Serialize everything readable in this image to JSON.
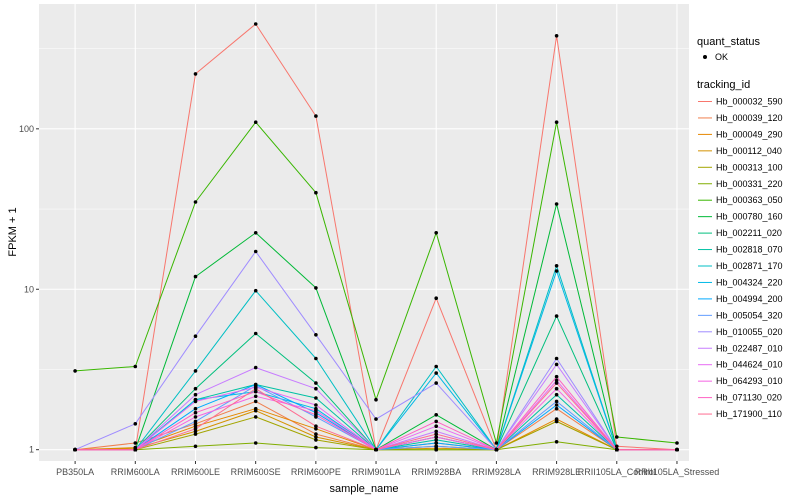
{
  "chart_data": {
    "type": "line",
    "xlabel": "sample_name",
    "ylabel": "FPKM + 1",
    "yscale": "log10",
    "ylim": [
      0.85,
      600
    ],
    "ytick_values": [
      1,
      10,
      100
    ],
    "ytick_labels": [
      "1",
      "10",
      "100"
    ],
    "grid": true,
    "background": "#ebebeb",
    "categories": [
      "PB350LA",
      "RRIM600LA",
      "RRIM600LE",
      "RRIM600SE",
      "RRIM600PE",
      "RRIM901LA",
      "RRIM928BA",
      "RRIM928LA",
      "RRIM928LE",
      "RRII105LA_Control",
      "RRII105LA_Stressed"
    ],
    "legend_position": "right",
    "legend_status": {
      "title": "quant_status",
      "entries": [
        "OK"
      ],
      "marker": "point"
    },
    "legend_series_title": "tracking_id",
    "series": [
      {
        "name": "Hb_000032_590",
        "color": "#F8766D",
        "values": [
          1.0,
          1.0,
          220,
          450,
          120,
          1.0,
          8.8,
          1.0,
          380,
          1.05,
          1.0
        ]
      },
      {
        "name": "Hb_000039_120",
        "color": "#F07F4D",
        "values": [
          1.0,
          1.1,
          1.45,
          2.0,
          1.25,
          1.0,
          1.1,
          1.0,
          1.8,
          1.0,
          1.0
        ]
      },
      {
        "name": "Hb_000049_290",
        "color": "#E58700",
        "values": [
          1.0,
          1.03,
          1.4,
          1.8,
          1.35,
          1.0,
          1.05,
          1.0,
          1.55,
          1.0,
          1.0
        ]
      },
      {
        "name": "Hb_000112_040",
        "color": "#D49200",
        "values": [
          1.0,
          1.02,
          1.3,
          1.75,
          1.2,
          1.0,
          1.02,
          1.0,
          1.5,
          1.0,
          1.0
        ]
      },
      {
        "name": "Hb_000313_100",
        "color": "#A3A500",
        "values": [
          1.0,
          1.0,
          1.25,
          1.6,
          1.15,
          1.0,
          1.0,
          1.0,
          1.5,
          1.0,
          1.0
        ]
      },
      {
        "name": "Hb_000331_220",
        "color": "#80AD00",
        "values": [
          1.0,
          1.0,
          1.05,
          1.1,
          1.03,
          1.0,
          1.0,
          1.0,
          1.12,
          1.0,
          1.0
        ]
      },
      {
        "name": "Hb_000363_050",
        "color": "#39B600",
        "values": [
          3.1,
          3.3,
          35,
          110,
          40,
          2.05,
          22.5,
          1.1,
          110,
          1.2,
          1.1
        ]
      },
      {
        "name": "Hb_000780_160",
        "color": "#00B937",
        "values": [
          1.0,
          1.0,
          12,
          22.5,
          10.2,
          1.0,
          1.65,
          1.0,
          34,
          1.0,
          1.0
        ]
      },
      {
        "name": "Hb_002211_020",
        "color": "#00BF7D",
        "values": [
          1.0,
          1.0,
          2.4,
          5.3,
          2.6,
          1.0,
          1.2,
          1.0,
          6.8,
          1.0,
          1.0
        ]
      },
      {
        "name": "Hb_002818_070",
        "color": "#00C1A3",
        "values": [
          1.0,
          1.0,
          2.05,
          2.55,
          2.1,
          1.0,
          1.15,
          1.0,
          2.2,
          1.0,
          1.0
        ]
      },
      {
        "name": "Hb_002871_170",
        "color": "#00BFC4",
        "values": [
          1.0,
          1.0,
          3.1,
          9.8,
          3.7,
          1.0,
          3.3,
          1.0,
          14.0,
          1.0,
          1.0
        ]
      },
      {
        "name": "Hb_004324_220",
        "color": "#00B8E7",
        "values": [
          1.0,
          1.0,
          2.05,
          2.3,
          1.8,
          1.0,
          3.0,
          1.0,
          13.0,
          1.0,
          1.0
        ]
      },
      {
        "name": "Hb_004994_200",
        "color": "#00A9FF",
        "values": [
          1.0,
          1.0,
          1.8,
          2.55,
          1.7,
          1.0,
          1.1,
          1.0,
          1.9,
          1.0,
          1.0
        ]
      },
      {
        "name": "Hb_005054_320",
        "color": "#619CFF",
        "values": [
          1.0,
          1.0,
          1.5,
          2.5,
          1.6,
          1.0,
          1.05,
          1.0,
          2.0,
          1.0,
          1.0
        ]
      },
      {
        "name": "Hb_010055_020",
        "color": "#9F8CFF",
        "values": [
          1.0,
          1.45,
          5.1,
          17.2,
          5.2,
          1.55,
          2.6,
          1.0,
          3.7,
          1.0,
          1.0
        ]
      },
      {
        "name": "Hb_022487_010",
        "color": "#C77CFF",
        "values": [
          1.0,
          1.0,
          2.2,
          3.25,
          2.4,
          1.0,
          1.3,
          1.0,
          3.4,
          1.0,
          1.0
        ]
      },
      {
        "name": "Hb_044624_010",
        "color": "#E76BF3",
        "values": [
          1.0,
          1.0,
          2.0,
          2.45,
          1.9,
          1.0,
          1.4,
          1.0,
          2.7,
          1.0,
          1.0
        ]
      },
      {
        "name": "Hb_064293_010",
        "color": "#F564E3",
        "values": [
          1.0,
          1.0,
          1.6,
          2.15,
          1.75,
          1.0,
          1.2,
          1.0,
          2.4,
          1.0,
          1.0
        ]
      },
      {
        "name": "Hb_071130_020",
        "color": "#FF61C3",
        "values": [
          1.0,
          1.0,
          1.7,
          2.3,
          1.65,
          1.0,
          1.5,
          1.0,
          2.85,
          1.0,
          1.0
        ]
      },
      {
        "name": "Hb_171900_110",
        "color": "#FF6C91",
        "values": [
          1.0,
          1.0,
          1.35,
          2.4,
          1.4,
          1.0,
          1.25,
          1.0,
          2.6,
          1.0,
          1.0
        ]
      }
    ]
  }
}
